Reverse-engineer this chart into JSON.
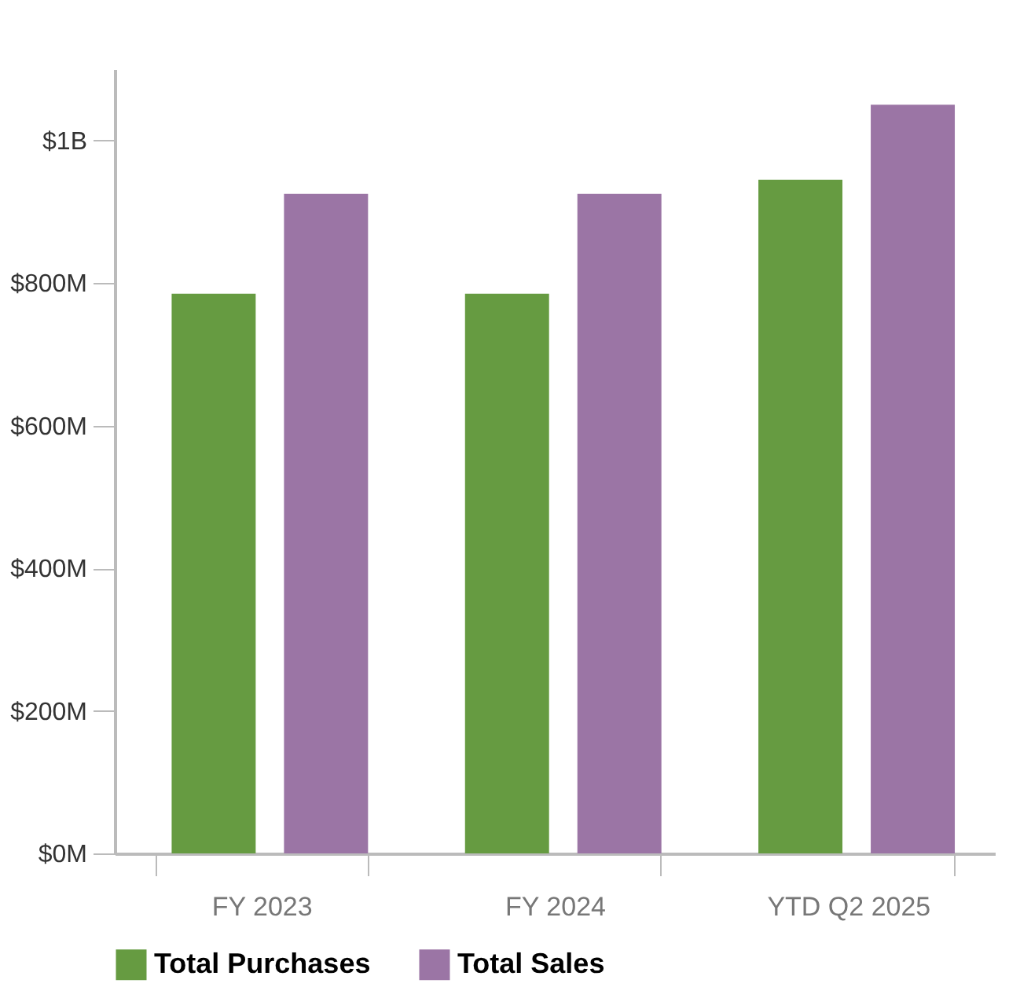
{
  "chart_data": {
    "type": "bar",
    "categories": [
      "FY 2023",
      "FY 2024",
      "YTD Q2 2025"
    ],
    "series": [
      {
        "name": "Total Purchases",
        "color": "#669b41",
        "values": [
          785000000,
          785000000,
          945000000
        ]
      },
      {
        "name": "Total Sales",
        "color": "#9b75a5",
        "values": [
          925000000,
          925000000,
          1050000000
        ]
      }
    ],
    "ylim": [
      0,
      1100000000
    ],
    "yticks": [
      {
        "value": 0,
        "label": "$0M"
      },
      {
        "value": 200000000,
        "label": "$200M"
      },
      {
        "value": 400000000,
        "label": "$400M"
      },
      {
        "value": 600000000,
        "label": "$600M"
      },
      {
        "value": 800000000,
        "label": "$800M"
      },
      {
        "value": 1000000000,
        "label": "$1B"
      }
    ],
    "grid": false,
    "legend": "bottom left"
  }
}
